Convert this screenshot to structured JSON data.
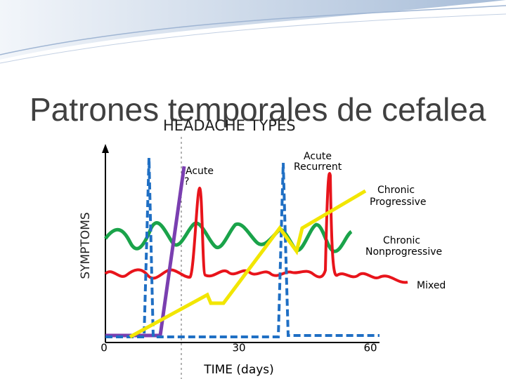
{
  "slide": {
    "title": "Patrones temporales de cefalea"
  },
  "figure": {
    "title": "HEADACHE TYPES",
    "y_label": "SYMPTOMS",
    "x_label": "TIME (days)",
    "x_ticks": [
      0,
      30,
      60
    ],
    "labels": {
      "acute": "Acute",
      "acute_question": "?",
      "acute_recurrent_1": "Acute",
      "acute_recurrent_2": "Recurrent",
      "chronic_progressive_1": "Chronic",
      "chronic_progressive_2": "Progressive",
      "chronic_nonprogressive_1": "Chronic",
      "chronic_nonprogressive_2": "Nonprogressive",
      "mixed": "Mixed"
    }
  }
}
